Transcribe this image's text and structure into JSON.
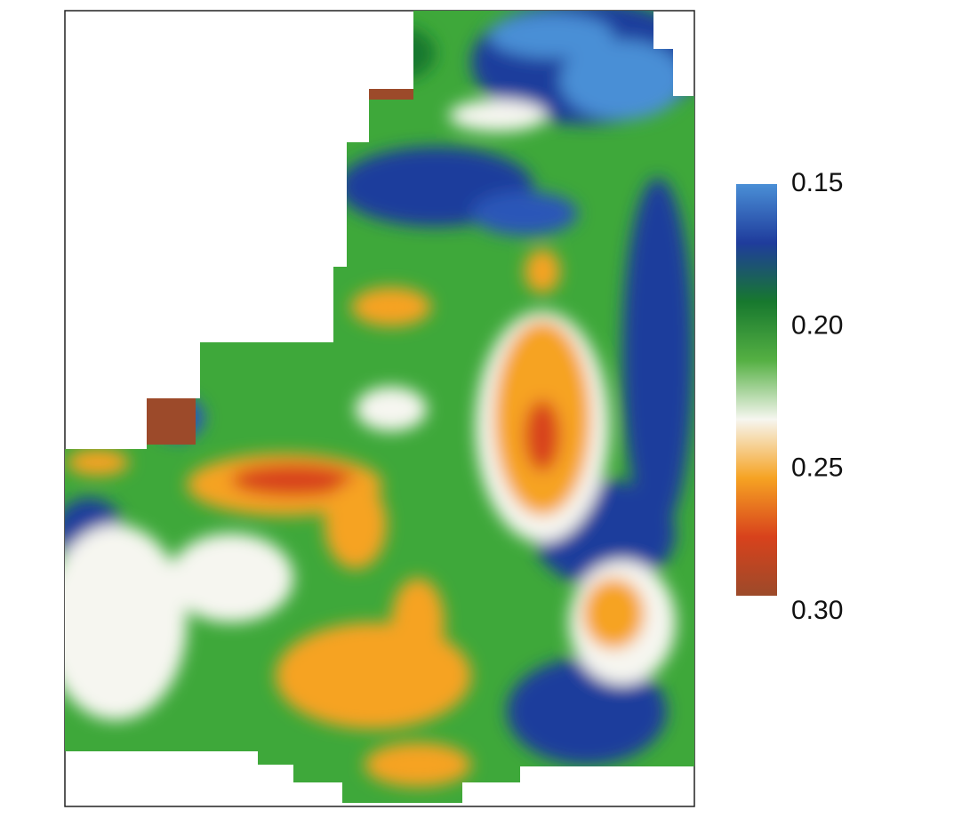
{
  "chart_data": {
    "type": "heatmap",
    "colorbar": {
      "lim": [
        0.15,
        0.3
      ],
      "ticks": [
        0.15,
        {
          "value": 0.2,
          "label": "0.20"
        },
        0.25,
        {
          "value": 0.3,
          "label": "0.30"
        }
      ],
      "colorscale": [
        "#4a8fd6",
        "#1f3c9c",
        "#17782e",
        "#55b043",
        "#f6f6f0",
        "#f6a323",
        "#d8421c",
        "#9c4a2a"
      ]
    }
  }
}
